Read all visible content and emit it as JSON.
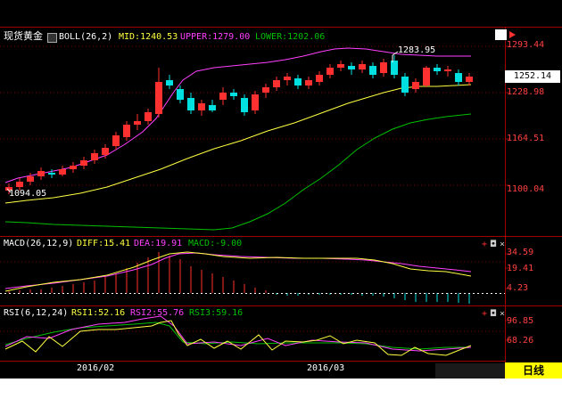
{
  "main_panel": {
    "instrument": "现货黄金",
    "indicator": "BOLL(26,2)",
    "mid": "MID:1240.53",
    "upper": "UPPER:1279.00",
    "lower": "LOWER:1202.06",
    "high_mark": "1283.95",
    "low_mark": "1094.05",
    "last_price": "1252.14",
    "axis_ticks": [
      "1293.44",
      "1228.98",
      "1164.51",
      "1100.04"
    ]
  },
  "macd_panel": {
    "indicator": "MACD(26,12,9)",
    "diff": "DIFF:15.41",
    "dea": "DEA:19.91",
    "macd": "MACD:-9.00",
    "axis_ticks": [
      "34.59",
      "19.41",
      "4.23"
    ]
  },
  "rsi_panel": {
    "indicator": "RSI(6,12,24)",
    "rsi1": "RSI1:52.16",
    "rsi2": "RSI2:55.76",
    "rsi3": "RSI3:59.16",
    "axis_ticks": [
      "96.85",
      "68.26"
    ]
  },
  "time_axis": {
    "labels": [
      "2016/02",
      "2016/03"
    ]
  },
  "period_button": {
    "label": "日线"
  },
  "controls": {
    "add": "+",
    "settings": "◘",
    "close": "×"
  },
  "colors": {
    "up": "#ff3030",
    "down": "#00e0e0",
    "mid": "#ffff40",
    "upper": "#ff40ff",
    "lower": "#00c000",
    "grid": "#a00000"
  },
  "chart_data": {
    "type": "candlestick",
    "boll_mid_current": 1240.53,
    "boll_upper_current": 1279.0,
    "boll_lower_current": 1202.06,
    "high": 1283.95,
    "low": 1094.05,
    "last": 1252.14,
    "macd_diff": 15.41,
    "macd_dea": 19.91,
    "macd_hist": -9.0,
    "rsi1": 52.16,
    "rsi2": 55.76,
    "rsi3": 59.16
  }
}
